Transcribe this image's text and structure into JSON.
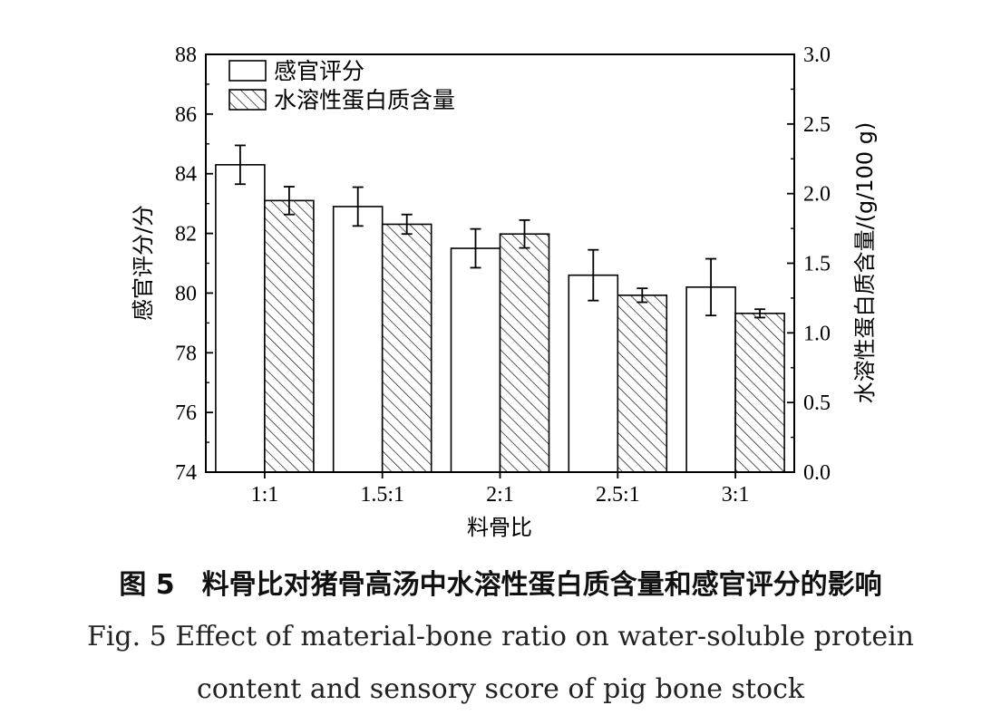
{
  "chart_data": {
    "type": "bar",
    "categories": [
      "1:1",
      "1.5:1",
      "2:1",
      "2.5:1",
      "3:1"
    ],
    "xlabel": "料骨比",
    "ylabel_left": "感官评分/分",
    "ylabel_right": "水溶性蛋白质含量/(g/100 g)",
    "ylim_left": [
      74,
      88
    ],
    "ylim_right": [
      0.0,
      3.0
    ],
    "yticks_left": [
      "74",
      "76",
      "78",
      "80",
      "82",
      "84",
      "86",
      "88"
    ],
    "yticks_right": [
      "0.0",
      "0.5",
      "1.0",
      "1.5",
      "2.0",
      "2.5",
      "3.0"
    ],
    "legend_position": "top-left",
    "grid": false,
    "series": [
      {
        "name": "感官评分",
        "axis": "left",
        "pattern": "plain",
        "values": [
          84.3,
          82.9,
          81.5,
          80.6,
          80.2
        ],
        "errors": [
          0.65,
          0.65,
          0.65,
          0.85,
          0.95
        ]
      },
      {
        "name": "水溶性蛋白质含量",
        "axis": "right",
        "pattern": "hatched",
        "values": [
          1.95,
          1.78,
          1.71,
          1.27,
          1.14
        ],
        "errors": [
          0.1,
          0.07,
          0.1,
          0.05,
          0.03
        ]
      }
    ]
  },
  "caption": {
    "cn": "图 5　料骨比对猪骨高汤中水溶性蛋白质含量和感官评分的影响",
    "en_line1": "Fig. 5 Effect of material-bone ratio on water-soluble protein",
    "en_line2": "content and sensory score of pig bone stock"
  }
}
